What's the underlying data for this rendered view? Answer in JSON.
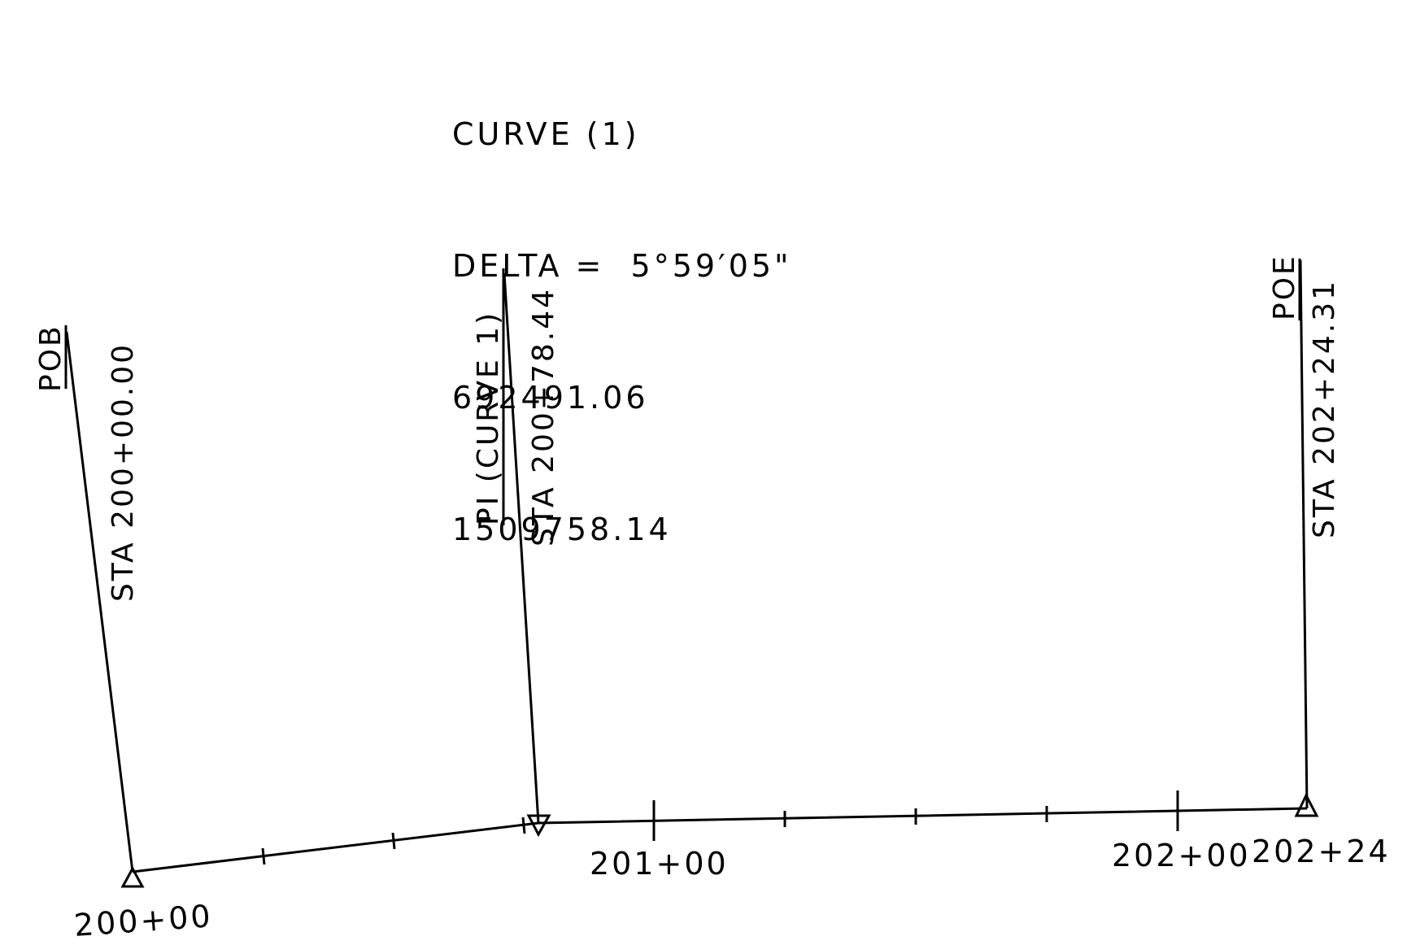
{
  "curve_info": {
    "title": "CURVE (1)",
    "delta": "DELTA =  5°59′05\"",
    "northing": "692491.06",
    "easting": "1509758.14"
  },
  "points": {
    "pob": {
      "name": "POB",
      "station": "STA 200+00.00"
    },
    "pi": {
      "name": "PI (CURVE 1)",
      "station": "STA 200+78.44"
    },
    "poe": {
      "name": "POE",
      "station": "STA 202+24.31"
    }
  },
  "station_labels": {
    "s200": "200+00",
    "s201": "201+00",
    "s202": "202+00",
    "s20224": "202+24"
  },
  "colors": {
    "line": "#000000",
    "background": "#ffffff"
  }
}
